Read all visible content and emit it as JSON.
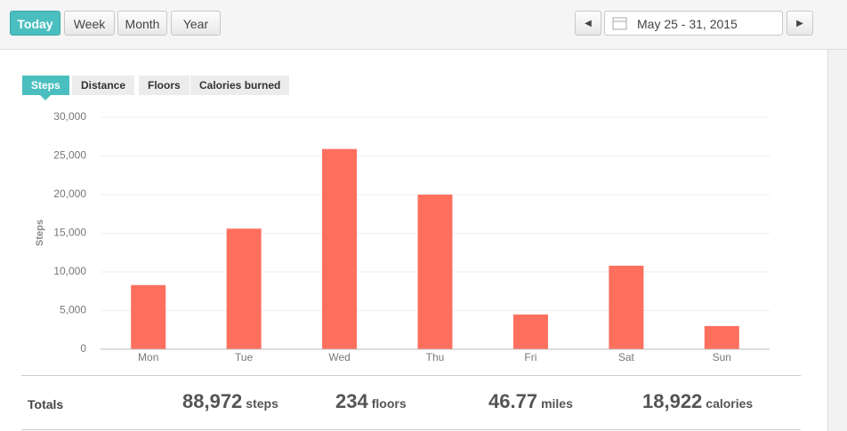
{
  "toolbar": {
    "ranges": [
      "Today",
      "Week",
      "Month",
      "Year"
    ],
    "active_range": "Today",
    "date_range": "May 25 - 31, 2015"
  },
  "tabs": {
    "items": [
      "Steps",
      "Distance",
      "Floors",
      "Calories burned"
    ],
    "active": "Steps"
  },
  "chart_data": {
    "type": "bar",
    "y_label": "Steps",
    "categories": [
      "Mon",
      "Tue",
      "Wed",
      "Thu",
      "Fri",
      "Sat",
      "Sun"
    ],
    "values": [
      8300,
      15600,
      25900,
      20000,
      4500,
      10800,
      3000
    ],
    "color": "#ff6f5e",
    "ylim": [
      0,
      30000
    ],
    "yticks": [
      0,
      {
        "value": 5000,
        "label": "5,000"
      },
      {
        "value": 10000,
        "label": "10,000"
      },
      {
        "value": 15000,
        "label": "15,000"
      },
      {
        "value": 20000,
        "label": "20,000"
      },
      {
        "value": 25000,
        "label": "25,000"
      },
      {
        "value": 30000,
        "label": "30,000"
      }
    ],
    "grid": true
  },
  "totals": {
    "label": "Totals",
    "items": [
      {
        "value": "88,972",
        "unit": "steps"
      },
      {
        "value": "234",
        "unit": "floors"
      },
      {
        "value": "46.77",
        "unit": "miles"
      },
      {
        "value": "18,922",
        "unit": "calories"
      }
    ]
  }
}
